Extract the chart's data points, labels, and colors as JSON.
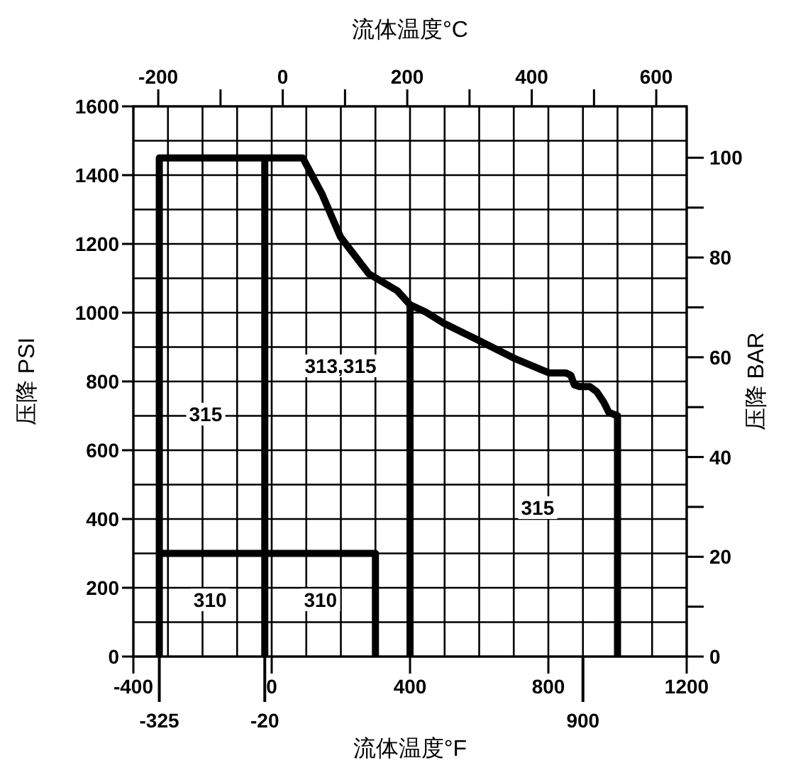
{
  "chart_data": {
    "type": "line",
    "xlabel": "流体温度°F",
    "x2label": "流体温度°C",
    "ylabel": "压降 PSI",
    "y2label": "压降 BAR",
    "xlim": [
      -400,
      1200
    ],
    "xticks": [
      -400,
      {
        "value": -300,
        "label": null
      },
      {
        "value": -200,
        "label": null
      },
      {
        "value": -100,
        "label": null
      },
      0,
      {
        "value": 100,
        "label": null
      },
      {
        "value": 200,
        "label": null
      },
      {
        "value": 300,
        "label": null
      },
      400,
      {
        "value": 500,
        "label": null
      },
      {
        "value": 600,
        "label": null
      },
      {
        "value": 700,
        "label": null
      },
      800,
      {
        "value": 900,
        "label": null
      },
      {
        "value": 1000,
        "label": null
      },
      {
        "value": 1100,
        "label": null
      },
      1200
    ],
    "ylim": [
      0,
      1600
    ],
    "yticks": [
      0,
      {
        "value": 100,
        "label": null
      },
      200,
      {
        "value": 300,
        "label": null
      },
      400,
      {
        "value": 500,
        "label": null
      },
      600,
      {
        "value": 700,
        "label": null
      },
      800,
      {
        "value": 900,
        "label": null
      },
      1000,
      {
        "value": 1100,
        "label": null
      },
      1200,
      {
        "value": 1300,
        "label": null
      },
      1400,
      {
        "value": 1500,
        "label": null
      },
      1600
    ],
    "x2lim": [
      -240,
      648.89
    ],
    "x2ticks": [
      -200,
      {
        "value": -100,
        "label": null
      },
      0,
      {
        "value": 100,
        "label": null
      },
      200,
      {
        "value": 300,
        "label": null
      },
      400,
      {
        "value": 500,
        "label": null
      },
      600
    ],
    "y2lim": [
      0,
      110.3
    ],
    "y2ticks": [
      0,
      {
        "value": 10,
        "label": null
      },
      20,
      {
        "value": 30,
        "label": null
      },
      40,
      {
        "value": 50,
        "label": null
      },
      60,
      {
        "value": 70,
        "label": null
      },
      80,
      {
        "value": 90,
        "label": null
      },
      100
    ],
    "ref_lines": [
      {
        "axis": "x",
        "value": -325,
        "label": "-325"
      },
      {
        "axis": "x",
        "value": -20,
        "label": "-20"
      },
      {
        "axis": "x",
        "value": 900,
        "label": "900"
      }
    ],
    "grid": true,
    "marker": "none",
    "line_style": "solid",
    "series": [
      {
        "color": "#000000",
        "x": [
          -325,
          -325,
          90,
          146,
          199,
          281,
          363,
          400,
          445,
          498,
          597,
          704,
          802,
          850,
          865,
          875,
          890,
          920,
          940,
          960,
          975,
          1000,
          1000
        ],
        "values": [
          0,
          1450,
          1450,
          1344,
          1220,
          1113,
          1064,
          1023,
          1002,
          969,
          920,
          866,
          825,
          825,
          818,
          790,
          785,
          785,
          770,
          740,
          710,
          700,
          0
        ]
      },
      {
        "color": "#000000",
        "x": [
          -20,
          -20
        ],
        "values": [
          0,
          1450
        ]
      },
      {
        "color": "#000000",
        "x": [
          -325,
          300,
          300
        ],
        "values": [
          300,
          300,
          0
        ]
      },
      {
        "color": "#000000",
        "x": [
          400,
          400
        ],
        "values": [
          0,
          1023
        ]
      }
    ],
    "annotations": [
      {
        "text": "315",
        "x": -191,
        "y": 705
      },
      "313,315",
      {
        "text": "310",
        "x": -178,
        "y": 165
      },
      {
        "text": "310",
        "x": 141,
        "y": 165
      },
      {
        "text": "315",
        "x": 769,
        "y": 433
      }
    ]
  }
}
